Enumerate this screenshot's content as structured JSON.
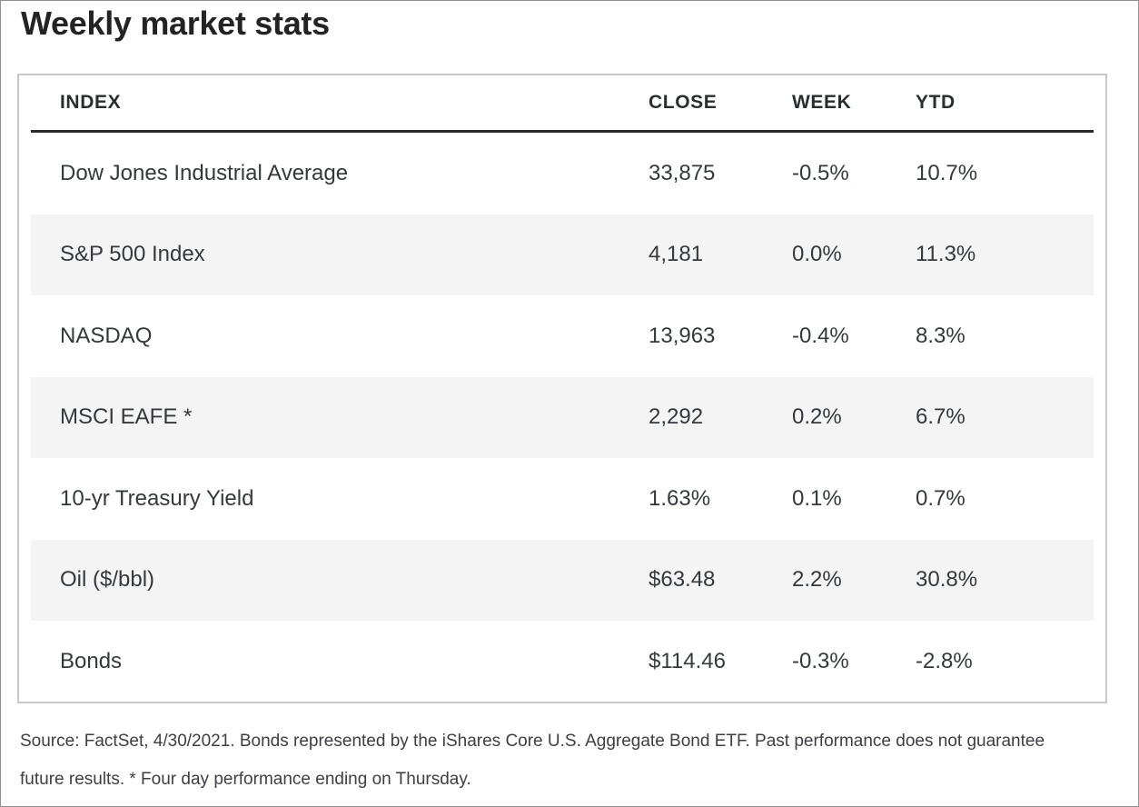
{
  "page": {
    "title": "Weekly market stats",
    "footnote_line1": "Source: FactSet, 4/30/2021. Bonds represented by the iShares Core U.S. Aggregate Bond ETF. Past performance does not guarantee",
    "footnote_line2": "future results. * Four day performance ending on Thursday."
  },
  "chart_data": {
    "type": "table",
    "title": "Weekly market stats",
    "columns": [
      "INDEX",
      "CLOSE",
      "WEEK",
      "YTD"
    ],
    "rows": [
      {
        "index": "Dow Jones Industrial Average",
        "close": "33,875",
        "week": "-0.5%",
        "ytd": "10.7%"
      },
      {
        "index": "S&P 500 Index",
        "close": "4,181",
        "week": "0.0%",
        "ytd": "11.3%"
      },
      {
        "index": "NASDAQ",
        "close": "13,963",
        "week": "-0.4%",
        "ytd": "8.3%"
      },
      {
        "index": "MSCI EAFE *",
        "close": "2,292",
        "week": "0.2%",
        "ytd": "6.7%"
      },
      {
        "index": "10-yr Treasury Yield",
        "close": "1.63%",
        "week": "0.1%",
        "ytd": "0.7%"
      },
      {
        "index": "Oil ($/bbl)",
        "close": "$63.48",
        "week": "2.2%",
        "ytd": "30.8%"
      },
      {
        "index": "Bonds",
        "close": "$114.46",
        "week": "-0.3%",
        "ytd": "-2.8%"
      }
    ],
    "source_note": "Source: FactSet, 4/30/2021. Bonds represented by the iShares Core U.S. Aggregate Bond ETF. Past performance does not guarantee future results. * Four day performance ending on Thursday.",
    "layout_hints": {
      "zebra_striped_rows": [
        2,
        4,
        6
      ],
      "header_rule": "thick dark line under header row"
    }
  },
  "colors": {
    "row_stripe": "#f4f4f4",
    "table_border": "#c9c9c9",
    "header_rule": "#2b2b2b",
    "body_text": "#35393c",
    "title_text": "#232323",
    "footnote_text": "#3f3e44",
    "frame_border": "#8e8e8e"
  }
}
